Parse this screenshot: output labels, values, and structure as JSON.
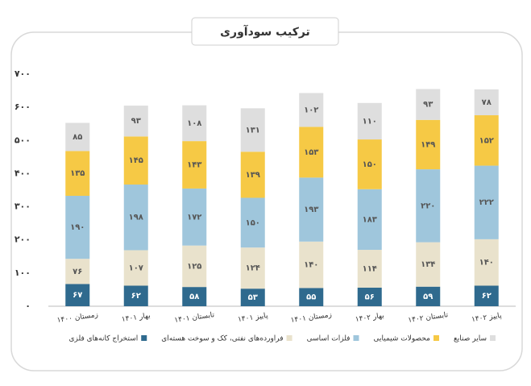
{
  "chart_data": {
    "type": "stacked_bar",
    "title": "ترکیب سودآوری",
    "categories": [
      "زمستان ۱۴۰۰",
      "بهار ۱۴۰۱",
      "تابستان ۱۴۰۱",
      "پاییز ۱۴۰۱",
      "زمستان ۱۴۰۱",
      "بهار ۱۴۰۲",
      "تابستان ۱۴۰۲",
      "پاییز ۱۴۰۲"
    ],
    "series": [
      {
        "name": "استخراج کانه‌های فلزی",
        "color": "#2f6a8e",
        "values": [
          67,
          62,
          58,
          53,
          55,
          56,
          59,
          62
        ],
        "value_labels": [
          "۶۷",
          "۶۲",
          "۵۸",
          "۵۳",
          "۵۵",
          "۵۶",
          "۵۹",
          "۶۲"
        ]
      },
      {
        "name": "فراورده‌های نفتی، کک و سوخت هسته‌ای",
        "color": "#e9e2cc",
        "values": [
          76,
          107,
          125,
          124,
          140,
          114,
          134,
          140
        ],
        "value_labels": [
          "۷۶",
          "۱۰۷",
          "۱۲۵",
          "۱۲۴",
          "۱۴۰",
          "۱۱۴",
          "۱۳۴",
          "۱۴۰"
        ]
      },
      {
        "name": "فلزات اساسی",
        "color": "#9fc6dc",
        "values": [
          190,
          198,
          172,
          150,
          193,
          183,
          220,
          222
        ],
        "value_labels": [
          "۱۹۰",
          "۱۹۸",
          "۱۷۲",
          "۱۵۰",
          "۱۹۳",
          "۱۸۳",
          "۲۲۰",
          "۲۲۲"
        ]
      },
      {
        "name": "محصولات شیمیایی",
        "color": "#f6c945",
        "values": [
          135,
          145,
          143,
          139,
          153,
          150,
          149,
          152
        ],
        "value_labels": [
          "۱۳۵",
          "۱۴۵",
          "۱۴۳",
          "۱۳۹",
          "۱۵۳",
          "۱۵۰",
          "۱۴۹",
          "۱۵۲"
        ]
      },
      {
        "name": "سایر صنایع",
        "color": "#dedede",
        "values": [
          85,
          93,
          108,
          131,
          102,
          110,
          93,
          78
        ],
        "value_labels": [
          "۸۵",
          "۹۳",
          "۱۰۸",
          "۱۳۱",
          "۱۰۲",
          "۱۱۰",
          "۹۳",
          "۷۸"
        ]
      }
    ],
    "ylim": [
      0,
      700
    ],
    "yticks": [
      {
        "value": 0,
        "label": "۰"
      },
      {
        "value": 100,
        "label": "۱۰۰"
      },
      {
        "value": 200,
        "label": "۲۰۰"
      },
      {
        "value": 300,
        "label": "۳۰۰"
      },
      {
        "value": 400,
        "label": "۴۰۰"
      },
      {
        "value": 500,
        "label": "۵۰۰"
      },
      {
        "value": 600,
        "label": "۶۰۰"
      },
      {
        "value": 700,
        "label": "۷۰۰"
      }
    ]
  }
}
